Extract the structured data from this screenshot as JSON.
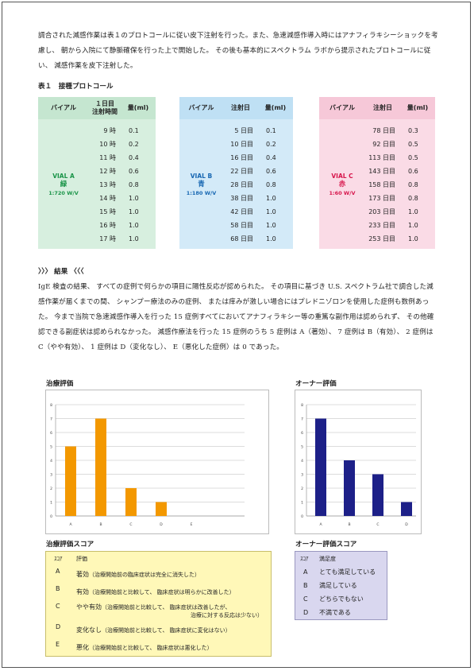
{
  "intro_text": "調合された減感作薬は表１のプロトコールに従い皮下注射を行った。また、急速減感作導入時にはアナフィラキシーショックを考慮し、 朝から入院にて静脈確保を行った上で開始した。 その後も基本的にスペクトラム ラボから提示されたプロトコールに従い、 減感作薬を皮下注射した。",
  "table_title": "表１　接種プロトコール",
  "protocols": [
    {
      "headers": [
        "バイアル",
        "１日目\n注射時間",
        "量(ml)"
      ],
      "vial_name": "VIAL A",
      "vial_color": "緑",
      "vial_ratio": "1:720  W/V",
      "rows": [
        [
          "9 時",
          "0.1"
        ],
        [
          "10 時",
          "0.2"
        ],
        [
          "11 時",
          "0.4"
        ],
        [
          "12 時",
          "0.6"
        ],
        [
          "13 時",
          "0.8"
        ],
        [
          "14 時",
          "1.0"
        ],
        [
          "15 時",
          "1.0"
        ],
        [
          "16 時",
          "1.0"
        ],
        [
          "17 時",
          "1.0"
        ]
      ]
    },
    {
      "headers": [
        "バイアル",
        "注射日",
        "量(ml)"
      ],
      "vial_name": "VIAL B",
      "vial_color": "青",
      "vial_ratio": "1:180  W/V",
      "rows": [
        [
          "5 日目",
          "0.1"
        ],
        [
          "10 日目",
          "0.2"
        ],
        [
          "16 日目",
          "0.4"
        ],
        [
          "22 日目",
          "0.6"
        ],
        [
          "28 日目",
          "0.8"
        ],
        [
          "38 日目",
          "1.0"
        ],
        [
          "42 日目",
          "1.0"
        ],
        [
          "58 日目",
          "1.0"
        ],
        [
          "68 日目",
          "1.0"
        ]
      ]
    },
    {
      "headers": [
        "バイアル",
        "注射日",
        "量(ml)"
      ],
      "vial_name": "VIAL C",
      "vial_color": "赤",
      "vial_ratio": "1:60  W/V",
      "rows": [
        [
          "78 日目",
          "0.3"
        ],
        [
          "92 日目",
          "0.5"
        ],
        [
          "113 日目",
          "0.5"
        ],
        [
          "143 日目",
          "0.6"
        ],
        [
          "158 日目",
          "0.8"
        ],
        [
          "173 日目",
          "0.8"
        ],
        [
          "203 日目",
          "1.0"
        ],
        [
          "233 日目",
          "1.0"
        ],
        [
          "253 日目",
          "1.0"
        ]
      ]
    }
  ],
  "results_heading": "〉〉〉 結果 〈〈〈",
  "results_text": "IgE 検査の結果、 すべての症例で何らかの項目に陽性反応が認められた。 その項目に基づき U.S. スペクトラム社で調合した減感作薬が届くまでの間、 シャンプー療法のみの症例、 または痒みが激しい場合にはプレドニゾロンを使用した症例も数例あった。 今まで当院で急速減感作導入を行った 15 症例すべてにおいてアナフィラキシー等の重篤な副作用は認められず、 その他確認できる副症状は認められなかった。 減感作療法を行った 15 症例のうち 5 症例は A（著効）、 7 症例は B（有効）、 2 症例は C（やや有効）、 1 症例は D（変化なし）、 E（悪化した症例）は 0 であった。",
  "chart_data": [
    {
      "type": "bar",
      "title": "治療評価",
      "categories": [
        "A",
        "B",
        "C",
        "D",
        "E"
      ],
      "values": [
        5,
        7,
        2,
        1,
        0
      ],
      "ylim": [
        0,
        8
      ],
      "yticks": [
        "0",
        "1",
        "2",
        "3",
        "4",
        "5",
        "6",
        "7",
        "8"
      ],
      "grid": true,
      "color": "#f39800"
    },
    {
      "type": "bar",
      "title": "オーナー評価",
      "categories": [
        "A",
        "B",
        "C",
        "D"
      ],
      "values": [
        7,
        4,
        3,
        1
      ],
      "ylim": [
        0,
        8
      ],
      "yticks": [
        "0",
        "1",
        "2",
        "3",
        "4",
        "5",
        "6",
        "7",
        "8"
      ],
      "grid": true,
      "color": "#1d2088"
    }
  ],
  "treatment_score": {
    "title": "治療評価スコア",
    "headers": [
      "ｽｺｱ",
      "評価"
    ],
    "rows": [
      {
        "k": "A",
        "label": "著効",
        "desc": "（治療開始前の臨床症状は完全に消失した）",
        "desc2": ""
      },
      {
        "k": "B",
        "label": "有効",
        "desc": "（治療開始前と比較して、 臨床症状は明らかに改善した）",
        "desc2": ""
      },
      {
        "k": "C",
        "label": "やや有効",
        "desc": "（治療開始前と比較して、 臨床症状は改善したが、",
        "desc2": "治療に対する反応は少ない）"
      },
      {
        "k": "D",
        "label": "変化なし",
        "desc": "（治療開始前と比較して、 臨床症状に変化はない）",
        "desc2": ""
      },
      {
        "k": "E",
        "label": "悪化",
        "desc": "（治療開始前と比較して、 臨床症状は悪化した）",
        "desc2": ""
      }
    ]
  },
  "owner_score": {
    "title": "オーナー評価スコア",
    "headers": [
      "ｽｺｱ",
      "満足度"
    ],
    "rows": [
      {
        "k": "A",
        "label": "とても満足している"
      },
      {
        "k": "B",
        "label": "満足している"
      },
      {
        "k": "C",
        "label": "どちらでもない"
      },
      {
        "k": "D",
        "label": "不満である"
      }
    ]
  }
}
